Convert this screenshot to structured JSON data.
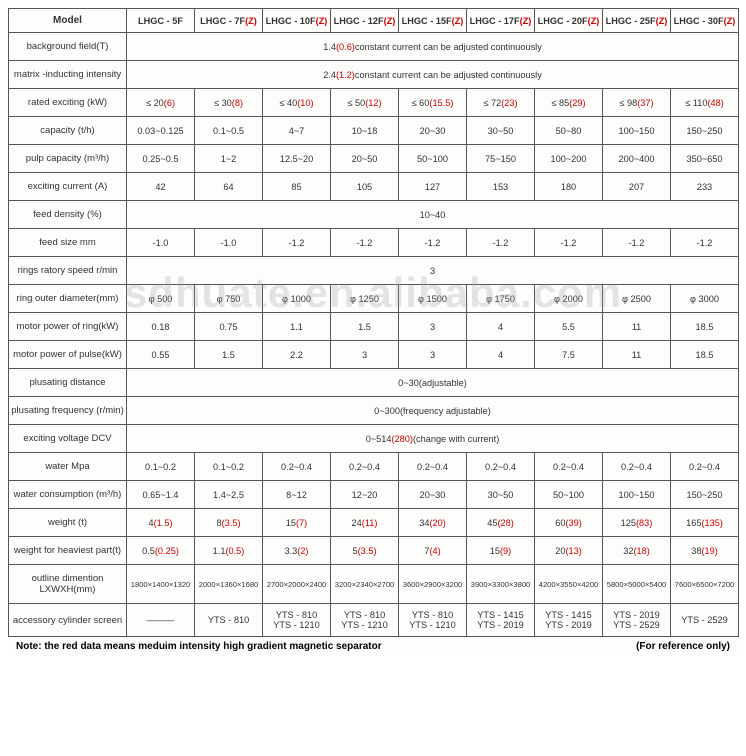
{
  "watermark": "sdhuate.en.alibaba.com",
  "footnote_left": "Note:  the red data means meduim intensity high gradient magnetic separator",
  "footnote_right": "(For reference only)",
  "header": {
    "label": "Model",
    "cols": [
      {
        "base": "LHGC - 5F",
        "suffix": ""
      },
      {
        "base": "LHGC - 7F",
        "suffix": "(Z)"
      },
      {
        "base": "LHGC - 10F",
        "suffix": "(Z)"
      },
      {
        "base": "LHGC - 12F",
        "suffix": "(Z)"
      },
      {
        "base": "LHGC - 15F",
        "suffix": "(Z)"
      },
      {
        "base": "LHGC - 17F",
        "suffix": "(Z)"
      },
      {
        "base": "LHGC - 20F",
        "suffix": "(Z)"
      },
      {
        "base": "LHGC - 25F",
        "suffix": "(Z)"
      },
      {
        "base": "LHGC - 30F",
        "suffix": "(Z)"
      }
    ]
  },
  "rows": [
    {
      "label": "background field(T)",
      "type": "span",
      "base": "1.4",
      "red": "(0.6)",
      "after": "constant current can be adjusted continuously"
    },
    {
      "label": "matrix  -inducting intensity",
      "type": "span",
      "base": "2.4",
      "red": "(1.2)",
      "after": "constant current can be adjusted continuously"
    },
    {
      "label": "rated exciting  (kW)",
      "type": "pair",
      "cells": [
        {
          "b": "≤ 20",
          "r": "(6)"
        },
        {
          "b": "≤ 30",
          "r": "(8)"
        },
        {
          "b": "≤ 40",
          "r": "(10)"
        },
        {
          "b": "≤ 50",
          "r": "(12)"
        },
        {
          "b": "≤ 60",
          "r": "(15.5)"
        },
        {
          "b": "≤ 72",
          "r": "(23)"
        },
        {
          "b": "≤ 85",
          "r": "(29)"
        },
        {
          "b": "≤ 98",
          "r": "(37)"
        },
        {
          "b": "≤ 110",
          "r": "(48)"
        }
      ]
    },
    {
      "label": "capacity   (t/h)",
      "type": "plain",
      "cells": [
        "0.03~0.125",
        "0.1~0.5",
        "4~7",
        "10~18",
        "20~30",
        "30~50",
        "50~80",
        "100~150",
        "150~250"
      ]
    },
    {
      "label": "pulp capacity   (m³/h)",
      "type": "plain",
      "cells": [
        "0.25~0.5",
        "1~2",
        "12.5~20",
        "20~50",
        "50~100",
        "75~150",
        "100~200",
        "200~400",
        "350~650"
      ]
    },
    {
      "label": "exciting current  (A)",
      "type": "plain",
      "cells": [
        "42",
        "64",
        "85",
        "105",
        "127",
        "153",
        "180",
        "207",
        "233"
      ]
    },
    {
      "label": "feed density (%)",
      "type": "span",
      "base": "10~40",
      "red": "",
      "after": ""
    },
    {
      "label": "feed size mm",
      "type": "plain",
      "cells": [
        "-1.0",
        "-1.0",
        "-1.2",
        "-1.2",
        "-1.2",
        "-1.2",
        "-1.2",
        "-1.2",
        "-1.2"
      ]
    },
    {
      "label": "rings ratory speed r/min",
      "type": "span",
      "base": "3",
      "red": "",
      "after": ""
    },
    {
      "label": "ring outer diameter(mm)",
      "type": "plain",
      "cells": [
        "φ 500",
        "φ 750",
        "φ 1000",
        "φ 1250",
        "φ 1500",
        "φ 1750",
        "φ 2000",
        "φ 2500",
        "φ 3000"
      ]
    },
    {
      "label": "motor power of ring(kW)",
      "type": "plain",
      "cells": [
        "0.18",
        "0.75",
        "1.1",
        "1.5",
        "3",
        "4",
        "5.5",
        "11",
        "18.5"
      ]
    },
    {
      "label": "motor power of pulse(kW)",
      "type": "plain",
      "cells": [
        "0.55",
        "1.5",
        "2.2",
        "3",
        "3",
        "4",
        "7.5",
        "11",
        "18.5"
      ]
    },
    {
      "label": "plusating distance",
      "type": "span",
      "base": "0~30(adjustable)",
      "red": "",
      "after": ""
    },
    {
      "label": "plusating frequency (r/min)",
      "type": "span",
      "base": "0~300(frequency adjustable)",
      "red": "",
      "after": ""
    },
    {
      "label": "exciting voltage   DCV",
      "type": "span",
      "base": "0~514",
      "red": "(280)",
      "after": "(change   with current)"
    },
    {
      "label": "water Mpa",
      "type": "plain",
      "cells": [
        "0.1~0.2",
        "0.1~0.2",
        "0.2~0.4",
        "0.2~0.4",
        "0.2~0.4",
        "0.2~0.4",
        "0.2~0.4",
        "0.2~0.4",
        "0.2~0.4"
      ]
    },
    {
      "label": "water consumption (m³/h)",
      "type": "plain",
      "cells": [
        "0.65~1.4",
        "1.4~2.5",
        "8~12",
        "12~20",
        "20~30",
        "30~50",
        "50~100",
        "100~150",
        "150~250"
      ]
    },
    {
      "label": "weight  (t)",
      "type": "pair",
      "cells": [
        {
          "b": "4",
          "r": "(1.5)"
        },
        {
          "b": "8",
          "r": "(3.5)"
        },
        {
          "b": "15",
          "r": "(7)"
        },
        {
          "b": "24",
          "r": "(11)"
        },
        {
          "b": "34",
          "r": "(20)"
        },
        {
          "b": "45",
          "r": "(28)"
        },
        {
          "b": "60",
          "r": "(39)"
        },
        {
          "b": "125",
          "r": "(83)"
        },
        {
          "b": "165",
          "r": "(135)"
        }
      ]
    },
    {
      "label": "weight for heaviest part(t)",
      "type": "pair",
      "cells": [
        {
          "b": "0.5",
          "r": "(0.25)"
        },
        {
          "b": "1.1",
          "r": "(0.5)"
        },
        {
          "b": "3.3",
          "r": "(2)"
        },
        {
          "b": "5",
          "r": "(3.5)"
        },
        {
          "b": "7",
          "r": "(4)"
        },
        {
          "b": "15",
          "r": "(9)"
        },
        {
          "b": "20",
          "r": "(13)"
        },
        {
          "b": "32",
          "r": "(18)"
        },
        {
          "b": "38",
          "r": "(19)"
        }
      ]
    },
    {
      "label": "outline dimention LXWXH(mm)",
      "type": "plain",
      "smaller": true,
      "cells": [
        "1800×1400×1320",
        "2000×1360×1680",
        "2700×2000×2400",
        "3200×2340×2700",
        "3600×2900×3200",
        "3900×3300×3800",
        "4200×3550×4200",
        "5800×5000×5400",
        "7600×6500×7200"
      ]
    },
    {
      "label": "accessory cylinder screen",
      "type": "plain",
      "cells": [
        "———",
        "YTS - 810",
        "YTS - 810\nYTS - 1210",
        "YTS - 810\nYTS - 1210",
        "YTS - 810\nYTS - 1210",
        "YTS - 1415\nYTS - 2019",
        "YTS - 1415\nYTS - 2019",
        "YTS - 2019\nYTS - 2529",
        "YTS - 2529"
      ]
    }
  ]
}
